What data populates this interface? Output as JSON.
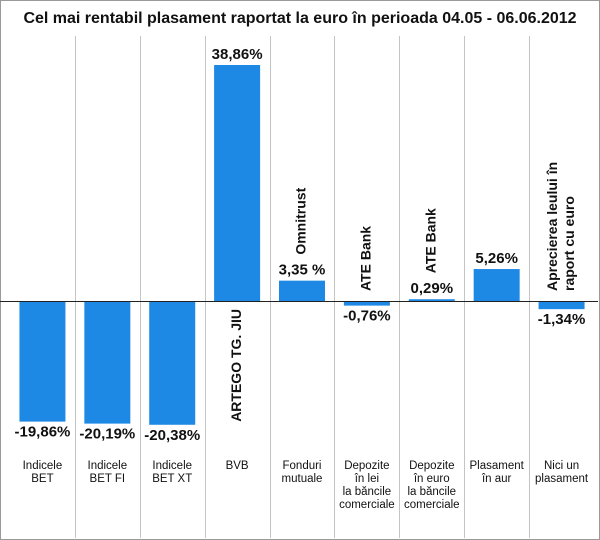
{
  "chart_data": {
    "type": "bar",
    "title": "Cel mai rentabil plasament raportat la euro în perioada 04.05 - 06.06.2012",
    "unit": "%",
    "bar_color": "#1e88e5",
    "categories": [
      {
        "label_lines": [
          "Indicele",
          "BET"
        ],
        "value": -19.86,
        "value_label": "-19,86%",
        "note": []
      },
      {
        "label_lines": [
          "Indicele",
          "BET FI"
        ],
        "value": -20.19,
        "value_label": "-20,19%",
        "note": []
      },
      {
        "label_lines": [
          "Indicele",
          "BET XT"
        ],
        "value": -20.38,
        "value_label": "-20,38%",
        "note": []
      },
      {
        "label_lines": [
          "BVB"
        ],
        "value": 38.86,
        "value_label": "38,86%",
        "note": [
          "ARTEGO TG. JIU"
        ]
      },
      {
        "label_lines": [
          "Fonduri",
          "mutuale"
        ],
        "value": 3.35,
        "value_label": "3,35 %",
        "note": [
          "Omnitrust"
        ]
      },
      {
        "label_lines": [
          "Depozite",
          "în lei",
          "la băncile",
          "comerciale"
        ],
        "value": -0.76,
        "value_label": "-0,76%",
        "note": [
          "ATE Bank"
        ]
      },
      {
        "label_lines": [
          "Depozite",
          "în euro",
          "la băncile",
          "comerciale"
        ],
        "value": 0.29,
        "value_label": "0,29%",
        "note": [
          "ATE Bank"
        ]
      },
      {
        "label_lines": [
          "Plasament",
          "în aur"
        ],
        "value": 5.26,
        "value_label": "5,26%",
        "note": []
      },
      {
        "label_lines": [
          "Nici un",
          "plasament"
        ],
        "value": -1.34,
        "value_label": "-1,34%",
        "note": [
          "Aprecierea leului în",
          "raport cu euro"
        ]
      }
    ],
    "ylim": [
      -21.5,
      40.5
    ],
    "xlabel": "",
    "ylabel": ""
  }
}
